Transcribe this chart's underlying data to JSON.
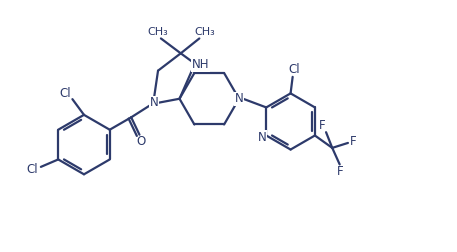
{
  "bg_color": "#ffffff",
  "line_color": "#2d3a6b",
  "line_width": 1.6,
  "label_color": "#2d3a6b",
  "label_fontsize": 8.5,
  "fig_width": 4.57,
  "fig_height": 2.52,
  "dpi": 100,
  "xlim": [
    0,
    11
  ],
  "ylim": [
    0,
    6
  ]
}
